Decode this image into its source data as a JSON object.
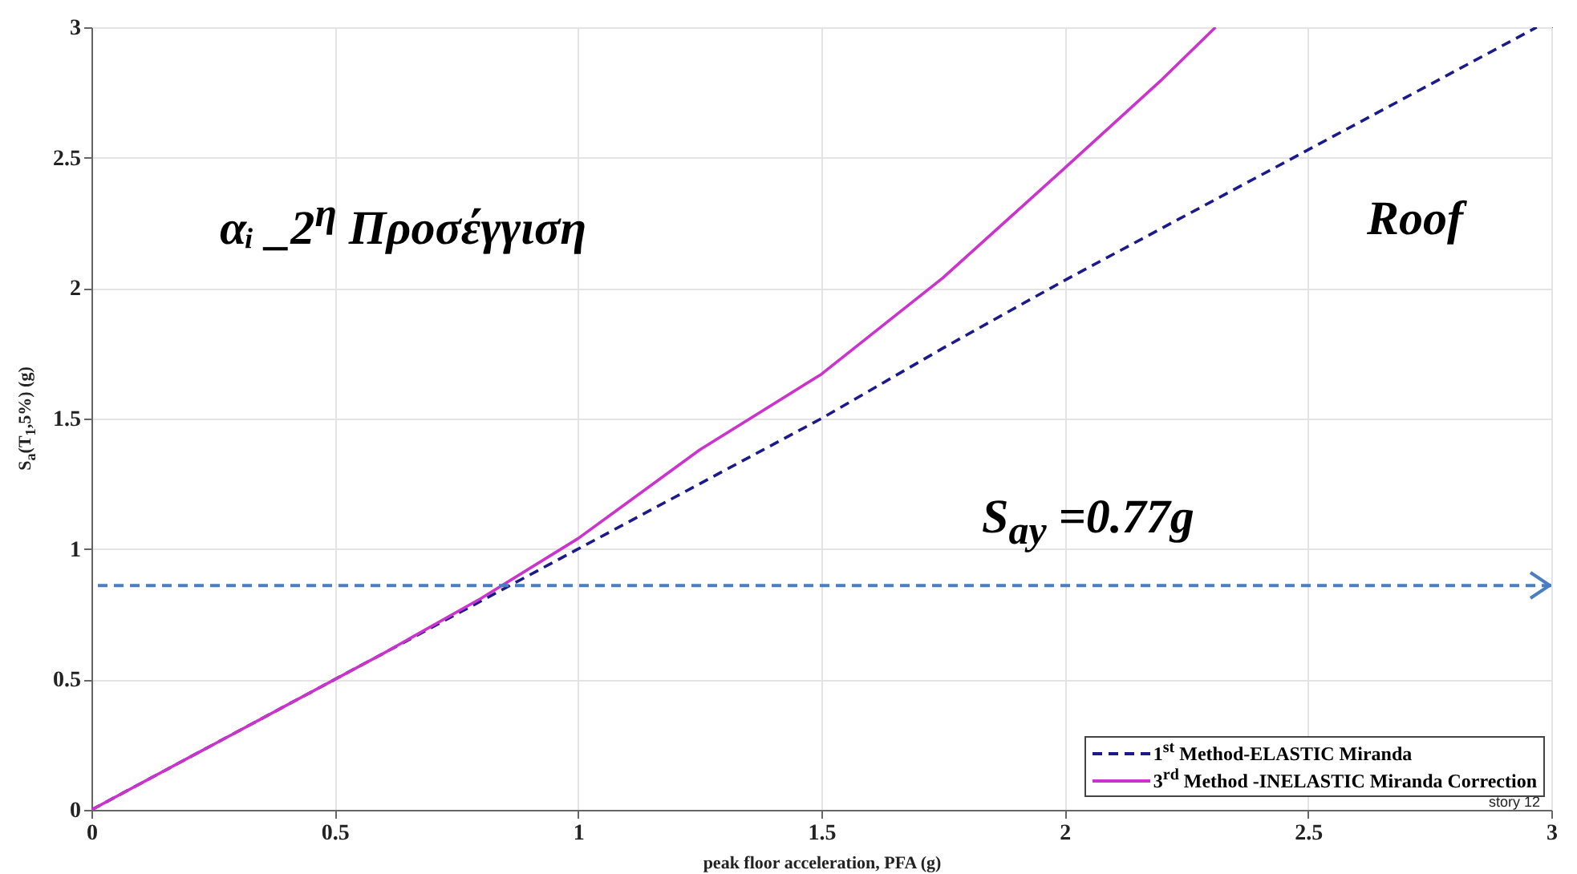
{
  "chart_data": {
    "type": "line",
    "xlabel": "peak floor acceleration, PFA (g)",
    "ylabel": "S$_{a}$(T$_{1}$,5%) (g)",
    "xlim": [
      0,
      3
    ],
    "xticks": [
      0,
      0.5,
      1,
      1.5,
      2,
      2.5,
      3
    ],
    "ylim": [
      0,
      3
    ],
    "yticks": [
      0,
      0.5,
      1,
      1.5,
      2,
      2.5,
      3
    ],
    "grid": true,
    "legend": "bottom right",
    "series": [
      {
        "name": "1$^{st}$ Method-ELASTIC Miranda",
        "color": "#1a1a8c",
        "line_style": "dashed",
        "x": [
          0,
          0.8,
          1.0,
          1.25,
          1.5,
          1.75,
          2.0,
          2.25,
          2.5,
          2.75,
          2.97
        ],
        "values": [
          0,
          0.8,
          1.0,
          1.25,
          1.5,
          1.77,
          2.03,
          2.28,
          2.53,
          2.78,
          3.0
        ]
      },
      {
        "name": "3$^{rd}$ Method -INELASTIC Miranda Correction",
        "color": "#cc33cc",
        "line_style": "solid",
        "x": [
          0,
          0.2,
          0.4,
          0.6,
          0.8,
          1.0,
          1.25,
          1.5,
          1.75,
          2.0,
          2.2,
          2.31
        ],
        "values": [
          0,
          0.2,
          0.4,
          0.6,
          0.81,
          1.04,
          1.38,
          1.67,
          2.04,
          2.46,
          2.8,
          3.0
        ]
      }
    ],
    "ref_lines": [
      {
        "axis": "y",
        "value": 0.86,
        "color": "#4a7ebf",
        "line_style": "dashed"
      }
    ],
    "annotations": [
      "αᵢ _2$^{η}$ Προσέγγιση",
      "Roof",
      "S$_{ay}$ =0.77g",
      "story 12"
    ]
  }
}
